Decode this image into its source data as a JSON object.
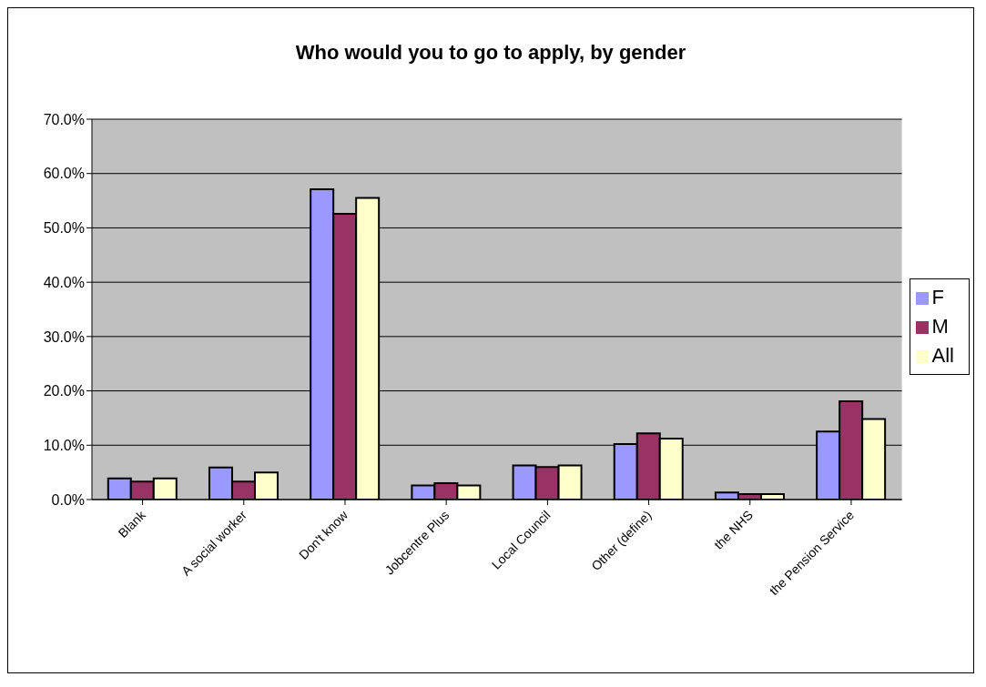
{
  "chart_data": {
    "type": "bar",
    "title": "Who would you to go to apply, by gender",
    "categories": [
      "Blank",
      "A social worker",
      "Don't know",
      "Jobcentre Plus",
      "Local Council",
      "Other (define)",
      "the NHS",
      "the Pension Service"
    ],
    "series": [
      {
        "name": "F",
        "color": "#9999ff",
        "values": [
          3.9,
          5.9,
          57.1,
          2.6,
          6.3,
          10.2,
          1.3,
          12.5
        ]
      },
      {
        "name": "M",
        "color": "#993366",
        "values": [
          3.3,
          3.3,
          52.6,
          3.0,
          6.0,
          12.2,
          1.0,
          18.1
        ]
      },
      {
        "name": "All",
        "color": "#ffffcc",
        "values": [
          3.9,
          5.0,
          55.5,
          2.6,
          6.3,
          11.2,
          1.0,
          14.8
        ]
      }
    ],
    "ylim": [
      0,
      70
    ],
    "yticks": [
      {
        "value": 0,
        "label": "0.0%"
      },
      {
        "value": 10,
        "label": "10.0%"
      },
      {
        "value": 20,
        "label": "20.0%"
      },
      {
        "value": 30,
        "label": "30.0%"
      },
      {
        "value": 40,
        "label": "40.0%"
      },
      {
        "value": 50,
        "label": "50.0%"
      },
      {
        "value": 60,
        "label": "60.0%"
      },
      {
        "value": 70,
        "label": "70.0%"
      }
    ],
    "grid": "y",
    "legend": "right"
  }
}
